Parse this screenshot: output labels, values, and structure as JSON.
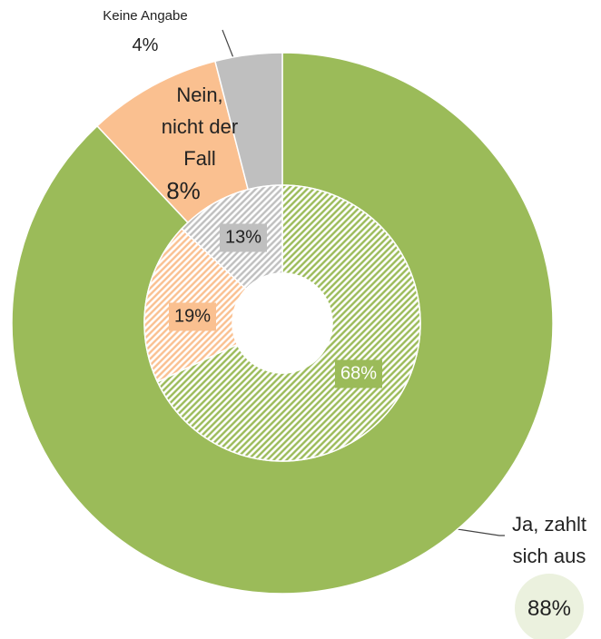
{
  "chart_data": {
    "type": "donut",
    "categories": [
      "Ja, zahlt sich aus",
      "Nein, nicht der Fall",
      "Keine Angabe"
    ],
    "colors": [
      "#9bbb59",
      "#fac090",
      "#bfbfbf"
    ],
    "series": [
      {
        "values": [
          88,
          8,
          4
        ],
        "value_labels": [
          "88%",
          "8%",
          "4%"
        ]
      },
      {
        "values": [
          68,
          19,
          13
        ],
        "value_labels": [
          "68%",
          "19%",
          "13%"
        ],
        "hatched": true
      }
    ]
  }
}
